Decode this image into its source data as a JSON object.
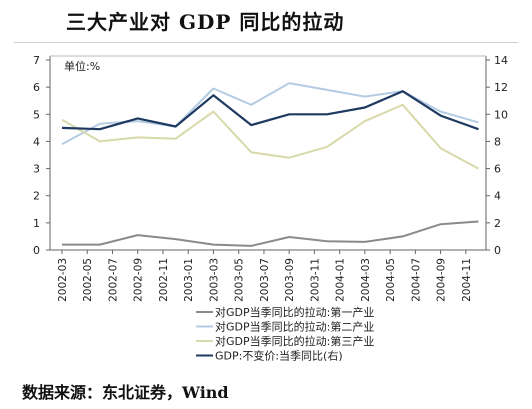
{
  "title": "三大产业对 GDP 同比的拉动",
  "source": "数据来源：东北证券，Wind",
  "chart_data": {
    "type": "line",
    "title": "三大产业对 GDP 同比的拉动",
    "unit_label": "单位:%",
    "x_tick_labels": [
      "2002-03",
      "2002-05",
      "2002-07",
      "2002-09",
      "2002-11",
      "2003-01",
      "2003-03",
      "2003-05",
      "2003-07",
      "2003-09",
      "2003-11",
      "2004-01",
      "2004-03",
      "2004-05",
      "2004-07",
      "2004-09",
      "2004-11"
    ],
    "x": [
      "2002-03",
      "2002-06",
      "2002-09",
      "2002-12",
      "2003-03",
      "2003-06",
      "2003-09",
      "2003-12",
      "2004-03",
      "2004-06",
      "2004-09",
      "2004-12"
    ],
    "y_left": {
      "min": 0,
      "max": 7,
      "ticks": [
        0,
        1,
        2,
        3,
        4,
        5,
        6,
        7
      ]
    },
    "y_right": {
      "min": 0,
      "max": 14,
      "ticks": [
        0,
        2,
        4,
        6,
        8,
        10,
        12,
        14
      ]
    },
    "grid": false,
    "legend_position": "bottom",
    "series": [
      {
        "name": "对GDP当季同比的拉动:第一产业",
        "axis": "left",
        "color": "#8a8a8a",
        "values": [
          0.2,
          0.2,
          0.55,
          0.4,
          0.2,
          0.15,
          0.48,
          0.32,
          0.3,
          0.5,
          0.95,
          1.05
        ]
      },
      {
        "name": "对GDP当季同比的拉动:第二产业",
        "axis": "left",
        "color": "#b4cbe3",
        "values": [
          3.9,
          4.65,
          4.75,
          4.55,
          5.95,
          5.35,
          6.15,
          5.9,
          5.65,
          5.85,
          5.1,
          4.7
        ]
      },
      {
        "name": "对GDP当季同比的拉动:第三产业",
        "axis": "left",
        "color": "#d8d9aa",
        "values": [
          4.8,
          4.0,
          4.15,
          4.1,
          5.1,
          3.6,
          3.4,
          3.8,
          4.75,
          5.35,
          3.75,
          3.0
        ]
      },
      {
        "name": "GDP:不变价:当季同比(右)",
        "axis": "right",
        "color": "#1f3a60",
        "values": [
          9.0,
          8.9,
          9.7,
          9.1,
          11.4,
          9.2,
          10.0,
          10.0,
          10.5,
          11.7,
          9.9,
          8.9
        ]
      }
    ]
  }
}
